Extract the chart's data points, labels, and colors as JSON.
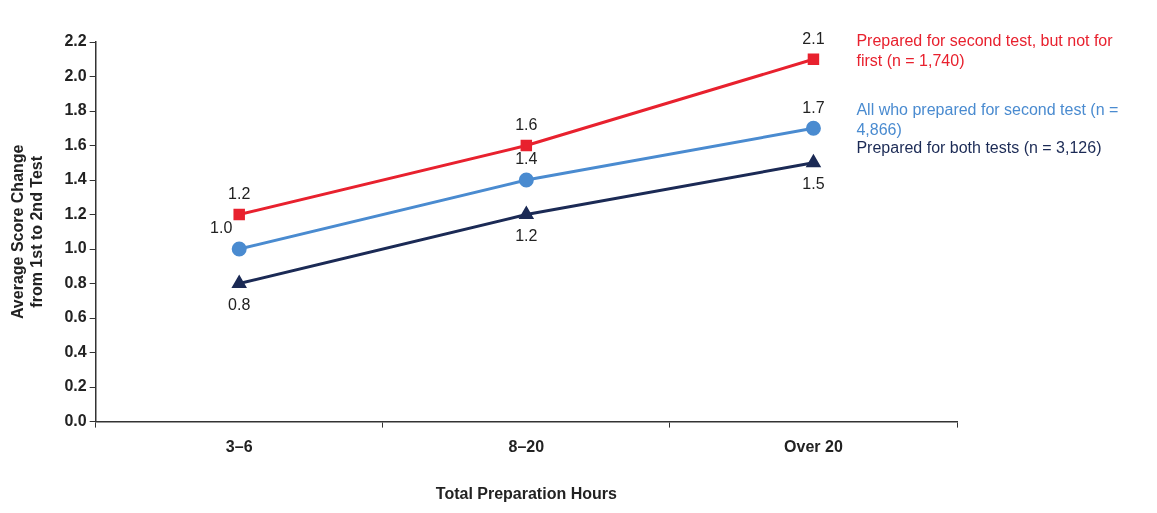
{
  "chart_data": {
    "type": "line",
    "xlabel": "Total Preparation Hours",
    "ylabel": "Average Score Change from 1st to 2nd Test",
    "categories": [
      "3–6",
      "8–20",
      "Over 20"
    ],
    "series": [
      {
        "name": "Prepared for second test, but not for first (n = 1,740)",
        "color": "#e8212e",
        "marker": "square",
        "values": [
          1.2,
          1.6,
          2.1
        ],
        "value_labels": [
          "1.2",
          "1.6",
          "2.1"
        ]
      },
      {
        "name": "All who prepared for second test (n = 4,866)",
        "color": "#4a8bd0",
        "marker": "circle",
        "values": [
          1.0,
          1.4,
          1.7
        ],
        "value_labels": [
          "1.0",
          "1.4",
          "1.7"
        ]
      },
      {
        "name": "Prepared for both tests (n = 3,126)",
        "color": "#1b2a55",
        "marker": "triangle",
        "values": [
          0.8,
          1.2,
          1.5
        ],
        "value_labels": [
          "0.8",
          "1.2",
          "1.5"
        ]
      }
    ],
    "ylim": [
      0,
      2.2
    ],
    "yticks": [
      {
        "value": 0,
        "label": "0.0"
      },
      0.2,
      0.4,
      0.6,
      0.8,
      {
        "value": 1,
        "label": "1.0"
      },
      1.2,
      1.4,
      1.6,
      1.8,
      {
        "value": 2,
        "label": "2.0"
      },
      2.2
    ],
    "grid": false,
    "legend": "right",
    "line_style": "solid"
  }
}
